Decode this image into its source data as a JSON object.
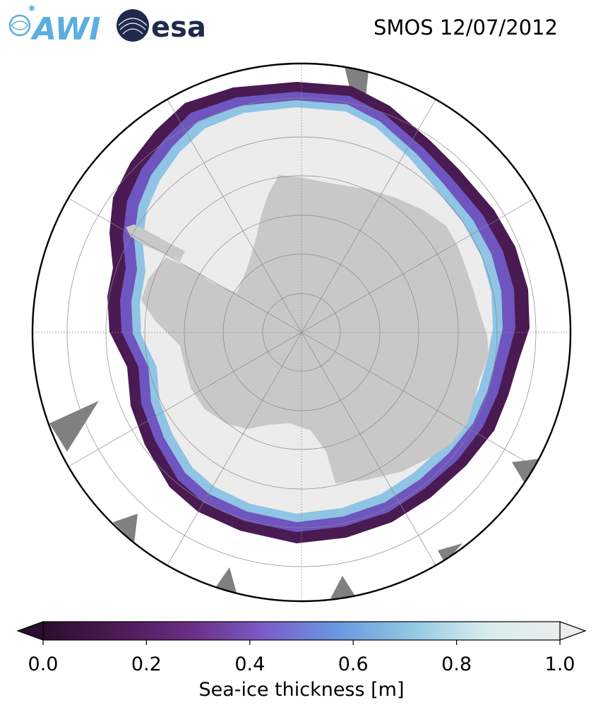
{
  "header": {
    "title": "SMOS 12/07/2012",
    "logos": [
      {
        "name": "awi-logo",
        "text": "AWI",
        "color": "#5aaee0"
      },
      {
        "name": "esa-logo",
        "text": "esa",
        "color": "#1f2a4d"
      }
    ]
  },
  "map": {
    "projection": "south-polar-stereographic",
    "land_color": "#c8c8c8",
    "thick_ice_color": "#ececec",
    "ocean_color": "#ffffff",
    "nodata_color": "#808080"
  },
  "colorbar": {
    "label": "Sea-ice thickness [m]",
    "ticks": [
      "0.0",
      "0.2",
      "0.4",
      "0.6",
      "0.8",
      "1.0"
    ],
    "range": [
      0.0,
      1.0
    ],
    "colormap": [
      "#2a0f2e",
      "#4d1a55",
      "#6a2e86",
      "#7b5dc8",
      "#6a98e0",
      "#93c8e2",
      "#d6ecee",
      "#ececec"
    ]
  }
}
